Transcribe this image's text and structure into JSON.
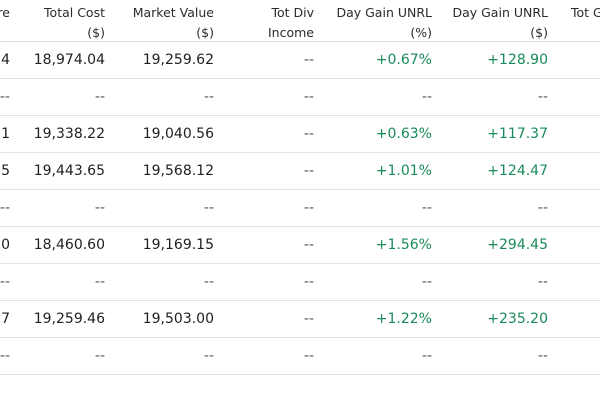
{
  "header": {
    "col0": [
      "re"
    ],
    "col1": [
      "Total Cost",
      "($)"
    ],
    "col2": [
      "Market Value",
      "($)"
    ],
    "col3": [
      "Tot Div",
      "Income"
    ],
    "col4": [
      "Day Gain UNRL",
      "(%)"
    ],
    "col5": [
      "Day Gain UNRL",
      "($)"
    ],
    "col6": [
      "Tot G"
    ]
  },
  "rows": [
    {
      "c0": "4",
      "c1": "18,974.04",
      "c2": "19,259.62",
      "c3": "--",
      "c4": "+0.67%",
      "c5": "+128.90"
    },
    {
      "c0": "--",
      "c1": "--",
      "c2": "--",
      "c3": "--",
      "c4": "--",
      "c5": "--"
    },
    {
      "c0": "1",
      "c1": "19,338.22",
      "c2": "19,040.56",
      "c3": "--",
      "c4": "+0.63%",
      "c5": "+117.37"
    },
    {
      "c0": "5",
      "c1": "19,443.65",
      "c2": "19,568.12",
      "c3": "--",
      "c4": "+1.01%",
      "c5": "+124.47"
    },
    {
      "c0": "--",
      "c1": "--",
      "c2": "--",
      "c3": "--",
      "c4": "--",
      "c5": "--"
    },
    {
      "c0": "0",
      "c1": "18,460.60",
      "c2": "19,169.15",
      "c3": "--",
      "c4": "+1.56%",
      "c5": "+294.45"
    },
    {
      "c0": "--",
      "c1": "--",
      "c2": "--",
      "c3": "--",
      "c4": "--",
      "c5": "--"
    },
    {
      "c0": "7",
      "c1": "19,259.46",
      "c2": "19,503.00",
      "c3": "--",
      "c4": "+1.22%",
      "c5": "+235.20"
    },
    {
      "c0": "--",
      "c1": "--",
      "c2": "--",
      "c3": "--",
      "c4": "--",
      "c5": "--"
    }
  ]
}
